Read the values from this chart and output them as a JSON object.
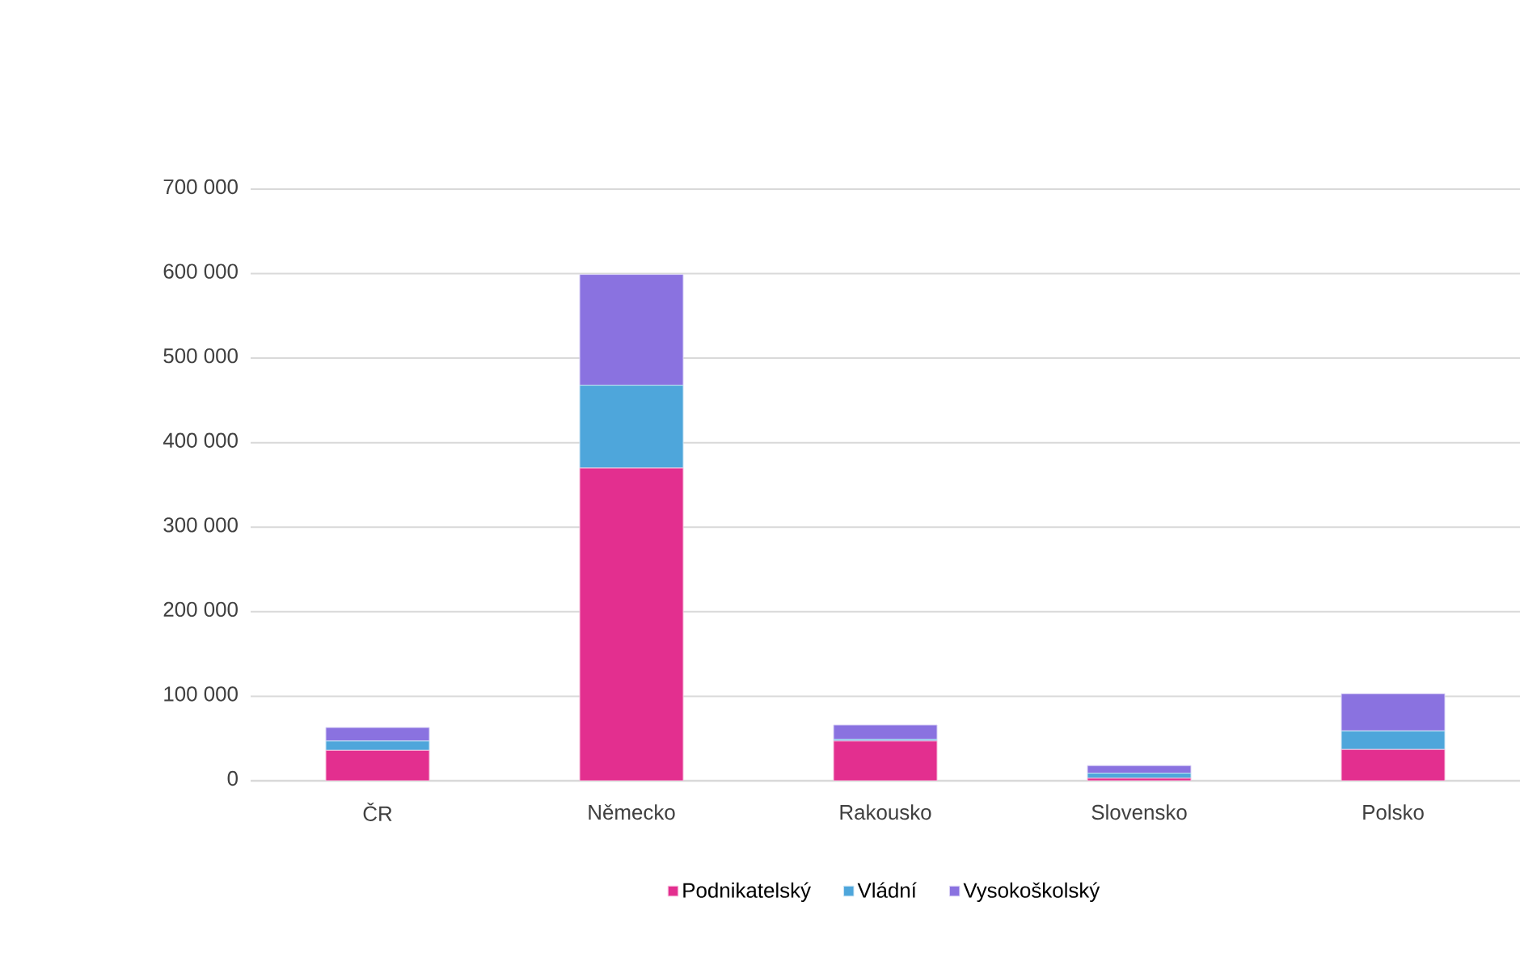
{
  "chart_data": {
    "type": "bar",
    "stacked": true,
    "categories": [
      "ČR",
      "Německo",
      "Rakousko",
      "Slovensko",
      "Polsko"
    ],
    "series": [
      {
        "name": "Podnikatelský",
        "color": "#e32f8f",
        "values": [
          36000,
          370000,
          47000,
          3000,
          37000
        ]
      },
      {
        "name": "Vládní",
        "color": "#4ea6db",
        "values": [
          11000,
          98000,
          2000,
          6000,
          22000
        ]
      },
      {
        "name": "Vysokoškolský",
        "color": "#8a72e0",
        "values": [
          16000,
          131000,
          17000,
          9000,
          44000
        ]
      }
    ],
    "ylim": [
      0,
      700000
    ],
    "yticks": [
      {
        "value": 0,
        "label": "0"
      },
      {
        "value": 100000,
        "label": "100 000"
      },
      {
        "value": 200000,
        "label": "200 000"
      },
      {
        "value": 300000,
        "label": "300 000"
      },
      {
        "value": 400000,
        "label": "400 000"
      },
      {
        "value": 500000,
        "label": "500 000"
      },
      {
        "value": 600000,
        "label": "600 000"
      },
      {
        "value": 700000,
        "label": "700 000"
      }
    ],
    "grid": "y",
    "legend": "bottom"
  }
}
